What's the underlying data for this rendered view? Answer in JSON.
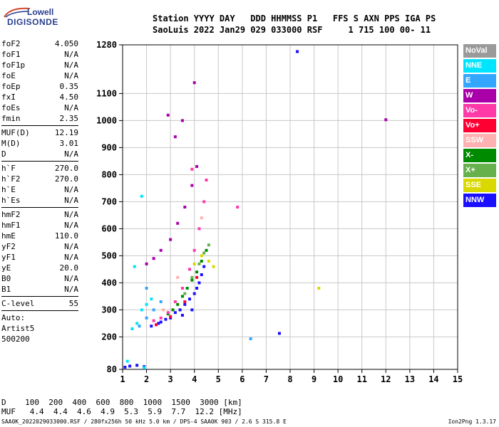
{
  "logo": {
    "line1": "Lowell",
    "line2": "DIGISONDE"
  },
  "header": {
    "line1": "Station YYYY DAY   DDD HHMMSS P1   FFS S AXN PPS IGA PS",
    "line2": "SaoLuis 2022 Jan29 029 033000 RSF     1 715 100 00- 11"
  },
  "params": [
    {
      "group": [
        {
          "name": "foF2",
          "value": "4.050"
        },
        {
          "name": "foF1",
          "value": "N/A"
        },
        {
          "name": "foF1p",
          "value": "N/A"
        },
        {
          "name": "foE",
          "value": "N/A"
        },
        {
          "name": "foEp",
          "value": "0.35"
        },
        {
          "name": "fxI",
          "value": "4.50"
        },
        {
          "name": "foEs",
          "value": "N/A"
        },
        {
          "name": "fmin",
          "value": "2.35"
        }
      ]
    },
    {
      "group": [
        {
          "name": "MUF(D)",
          "value": "12.19"
        },
        {
          "name": "M(D)",
          "value": "3.01"
        },
        {
          "name": "D",
          "value": "N/A"
        }
      ]
    },
    {
      "group": [
        {
          "name": "h`F",
          "value": "270.0"
        },
        {
          "name": "h`F2",
          "value": "270.0"
        },
        {
          "name": "h`E",
          "value": "N/A"
        },
        {
          "name": "h`Es",
          "value": "N/A"
        }
      ]
    },
    {
      "group": [
        {
          "name": "hmF2",
          "value": "N/A"
        },
        {
          "name": "hmF1",
          "value": "N/A"
        },
        {
          "name": "hmE",
          "value": "110.0"
        },
        {
          "name": "yF2",
          "value": "N/A"
        },
        {
          "name": "yF1",
          "value": "N/A"
        },
        {
          "name": "yE",
          "value": "20.0"
        },
        {
          "name": "B0",
          "value": "N/A"
        },
        {
          "name": "B1",
          "value": "N/A"
        }
      ]
    },
    {
      "group": [
        {
          "name": "C-level",
          "value": "55"
        }
      ]
    }
  ],
  "autoscaling": {
    "line1": "Auto:",
    "line2": "Artist5",
    "line3": "500200"
  },
  "legend": [
    {
      "label": "NoVal",
      "color": "#9a9a9a"
    },
    {
      "label": "NNE",
      "color": "#00e5ff"
    },
    {
      "label": "E",
      "color": "#33a6ff"
    },
    {
      "label": "W",
      "color": "#aa00aa"
    },
    {
      "label": "Vo-",
      "color": "#ff3aa8"
    },
    {
      "label": "Vo+",
      "color": "#ff0033"
    },
    {
      "label": "SSW",
      "color": "#ffb0b0"
    },
    {
      "label": "X-",
      "color": "#008a00"
    },
    {
      "label": "X+",
      "color": "#66b14c"
    },
    {
      "label": "SSE",
      "color": "#d9d900"
    },
    {
      "label": "NNW",
      "color": "#1a10ff"
    }
  ],
  "mufTable": {
    "line1": "D    100  200  400  600  800  1000  1500  3000 [km]",
    "line2": "MUF   4.4  4.4  4.6  4.9  5.3  5.9  7.7  12.2 [MHz]"
  },
  "footer": {
    "left": "SAA0K_2022029033000.RSF / 280fx256h 50 kHz 5.0 km / DPS-4 SAA0K 903 / 2.6 S 315.8 E",
    "right": "Ion2Png 1.3.17"
  },
  "chart_data": {
    "type": "scatter",
    "xlabel": "",
    "ylabel": "",
    "xlim": [
      1,
      15
    ],
    "ylim": [
      80,
      1280
    ],
    "xticks": [
      1,
      2,
      3,
      4,
      5,
      6,
      7,
      8,
      9,
      10,
      11,
      12,
      13,
      14,
      15
    ],
    "yticks": [
      80,
      200,
      300,
      400,
      500,
      600,
      700,
      800,
      900,
      1000,
      1100,
      1280
    ],
    "grid": true,
    "series": [
      {
        "name": "NNW",
        "color": "#1a10ff",
        "points": [
          [
            1.1,
            88
          ],
          [
            1.3,
            92
          ],
          [
            1.6,
            95
          ],
          [
            1.9,
            90
          ],
          [
            2.2,
            240
          ],
          [
            2.5,
            250
          ],
          [
            2.8,
            265
          ],
          [
            3.0,
            270
          ],
          [
            3.2,
            290
          ],
          [
            3.4,
            300
          ],
          [
            3.6,
            320
          ],
          [
            3.8,
            340
          ],
          [
            4.0,
            360
          ],
          [
            4.1,
            380
          ],
          [
            4.2,
            400
          ],
          [
            4.3,
            430
          ],
          [
            4.4,
            460
          ],
          [
            3.9,
            300
          ],
          [
            3.5,
            280
          ],
          [
            2.6,
            255
          ],
          [
            8.3,
            1255
          ],
          [
            7.55,
            213
          ]
        ]
      },
      {
        "name": "X-",
        "color": "#008a00",
        "points": [
          [
            2.9,
            285
          ],
          [
            3.1,
            300
          ],
          [
            3.3,
            320
          ],
          [
            3.5,
            350
          ],
          [
            3.7,
            380
          ],
          [
            3.9,
            410
          ],
          [
            4.1,
            440
          ],
          [
            4.3,
            480
          ],
          [
            4.5,
            520
          ]
        ]
      },
      {
        "name": "X+",
        "color": "#66b14c",
        "points": [
          [
            3.6,
            360
          ],
          [
            3.9,
            420
          ],
          [
            4.2,
            470
          ],
          [
            4.4,
            510
          ],
          [
            4.6,
            540
          ]
        ]
      },
      {
        "name": "SSE",
        "color": "#d9d900",
        "points": [
          [
            4.0,
            470
          ],
          [
            4.3,
            500
          ],
          [
            4.6,
            480
          ],
          [
            4.8,
            460
          ],
          [
            9.2,
            380
          ]
        ]
      },
      {
        "name": "Vo-",
        "color": "#ff3aa8",
        "points": [
          [
            2.3,
            260
          ],
          [
            2.6,
            270
          ],
          [
            2.9,
            290
          ],
          [
            3.2,
            330
          ],
          [
            3.5,
            380
          ],
          [
            3.8,
            450
          ],
          [
            4.0,
            520
          ],
          [
            4.2,
            600
          ],
          [
            4.4,
            700
          ],
          [
            4.5,
            780
          ],
          [
            3.9,
            820
          ],
          [
            5.8,
            680
          ]
        ]
      },
      {
        "name": "Vo+",
        "color": "#ff0033",
        "points": [
          [
            2.4,
            245
          ],
          [
            3.0,
            275
          ],
          [
            3.6,
            330
          ],
          [
            4.1,
            420
          ]
        ]
      },
      {
        "name": "W",
        "color": "#aa00aa",
        "points": [
          [
            2.0,
            470
          ],
          [
            2.3,
            490
          ],
          [
            2.6,
            520
          ],
          [
            3.0,
            560
          ],
          [
            3.3,
            620
          ],
          [
            3.6,
            680
          ],
          [
            3.9,
            760
          ],
          [
            4.1,
            830
          ],
          [
            3.2,
            940
          ],
          [
            2.9,
            1020
          ],
          [
            3.5,
            1000
          ],
          [
            4.0,
            1140
          ],
          [
            12.0,
            1003
          ]
        ]
      },
      {
        "name": "NNE",
        "color": "#00e5ff",
        "points": [
          [
            1.4,
            230
          ],
          [
            1.6,
            250
          ],
          [
            1.8,
            300
          ],
          [
            2.0,
            320
          ],
          [
            2.2,
            340
          ],
          [
            1.5,
            460
          ],
          [
            1.8,
            720
          ],
          [
            1.2,
            110
          ],
          [
            1.9,
            86
          ]
        ]
      },
      {
        "name": "E",
        "color": "#33a6ff",
        "points": [
          [
            1.7,
            240
          ],
          [
            2.0,
            270
          ],
          [
            2.3,
            300
          ],
          [
            2.6,
            330
          ],
          [
            2.0,
            380
          ],
          [
            6.35,
            193
          ]
        ]
      },
      {
        "name": "SSW",
        "color": "#ffb0b0",
        "points": [
          [
            2.7,
            300
          ],
          [
            3.3,
            420
          ],
          [
            4.3,
            640
          ]
        ]
      }
    ]
  }
}
